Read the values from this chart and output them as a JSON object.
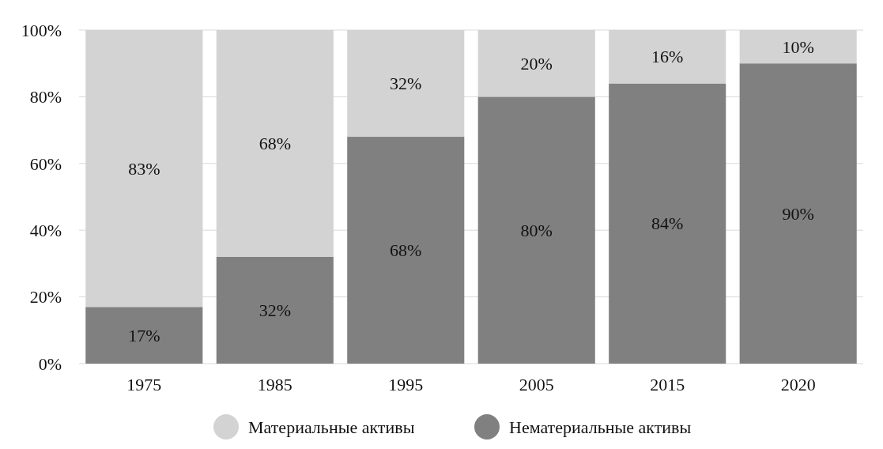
{
  "chart_data": {
    "type": "bar",
    "stacked": true,
    "categories": [
      "1975",
      "1985",
      "1995",
      "2005",
      "2015",
      "2020"
    ],
    "series": [
      {
        "name": "Нематериальные активы",
        "color": "#808080",
        "values": [
          17,
          32,
          68,
          80,
          84,
          90
        ],
        "value_labels": [
          "17%",
          "32%",
          "68%",
          "80%",
          "84%",
          "90%"
        ]
      },
      {
        "name": "Материальные активы",
        "color": "#d3d3d3",
        "values": [
          83,
          68,
          32,
          20,
          16,
          10
        ],
        "value_labels": [
          "83%",
          "68%",
          "32%",
          "20%",
          "16%",
          "10%"
        ]
      }
    ],
    "ylim": [
      0,
      100
    ],
    "yticks": [
      {
        "value": 0,
        "label": "0%"
      },
      {
        "value": 20,
        "label": "20%"
      },
      {
        "value": 40,
        "label": "40%"
      },
      {
        "value": 60,
        "label": "60%"
      },
      {
        "value": 80,
        "label": "80%"
      },
      {
        "value": 100,
        "label": "100%"
      }
    ],
    "grid": "y",
    "legend": "bottom"
  }
}
